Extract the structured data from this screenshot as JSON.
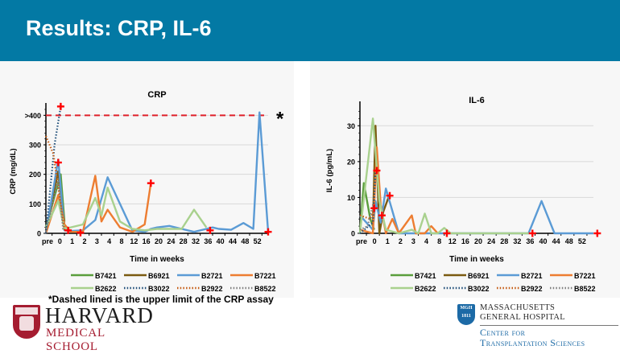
{
  "header": {
    "title": "Results: CRP, IL-6"
  },
  "footnote": "*Dashed lined is the upper limit of the CRP assay",
  "logos": {
    "harvard": {
      "name": "HARVARD",
      "sub": "MEDICAL SCHOOL"
    },
    "mgh": {
      "shield_text": "MGH",
      "shield_year": "1811",
      "line1": "MASSACHUSETTS",
      "line2": "GENERAL HOSPITAL",
      "center1": "Center for",
      "center2": "Transplantation Sciences"
    }
  },
  "colors": {
    "header_bg": "#0379a4",
    "B7421": "#5a9e3c",
    "B6921": "#7a5a10",
    "B2721": "#5b9bd5",
    "B7221": "#ed7d31",
    "B2622": "#a9d18e",
    "B3022": "#1f4e79",
    "B2922": "#c55a11",
    "B8522": "#7f7f7f",
    "marker": "#ff0000",
    "limit": "#e0202a"
  },
  "chart_data": [
    {
      "type": "line",
      "title": "CRP",
      "xlabel": "Time in weeks",
      "ylabel": "CRP (mg/dL)",
      "categories": [
        "pre",
        "0",
        "1",
        "2",
        "3",
        "4",
        "8",
        "12",
        "16",
        "20",
        "24",
        "28",
        "32",
        "36",
        "40",
        "44",
        "48",
        "52"
      ],
      "ytick_labels": [
        "0",
        "100",
        "200",
        "300",
        ">400"
      ],
      "ylim": [
        0,
        420
      ],
      "grid": true,
      "legend": "bottom",
      "reference_line": {
        "y": 400,
        "style": "dashed",
        "label": "*"
      },
      "series": [
        {
          "name": "B7421",
          "style": "solid",
          "points": [
            [
              0,
              20
            ],
            [
              1.2,
              200
            ],
            [
              1.5,
              40
            ]
          ]
        },
        {
          "name": "B6921",
          "style": "solid",
          "points": [
            [
              0,
              10
            ],
            [
              1,
              210
            ],
            [
              1.5,
              30
            ],
            [
              2,
              5
            ]
          ]
        },
        {
          "name": "B2721",
          "style": "solid",
          "points": [
            [
              0,
              0
            ],
            [
              1,
              250
            ],
            [
              1.5,
              10
            ],
            [
              2,
              8
            ],
            [
              3,
              10
            ],
            [
              4,
              45
            ],
            [
              5,
              190
            ],
            [
              6,
              100
            ],
            [
              7,
              10
            ],
            [
              8,
              5
            ],
            [
              8.5,
              15
            ],
            [
              9,
              20
            ],
            [
              10,
              25
            ],
            [
              11,
              15
            ],
            [
              12,
              5
            ],
            [
              13,
              15
            ],
            [
              13.5,
              20
            ],
            [
              14,
              15
            ],
            [
              15,
              12
            ],
            [
              16,
              35
            ],
            [
              16.8,
              15
            ],
            [
              17.3,
              410
            ],
            [
              18,
              5
            ]
          ]
        },
        {
          "name": "B7221",
          "style": "solid",
          "points": [
            [
              0,
              0
            ],
            [
              1,
              130
            ],
            [
              1.5,
              30
            ],
            [
              2,
              5
            ],
            [
              3,
              5
            ],
            [
              4,
              195
            ],
            [
              4.5,
              40
            ],
            [
              5,
              80
            ],
            [
              6,
              20
            ],
            [
              7,
              5
            ],
            [
              8,
              30
            ],
            [
              8.5,
              170
            ]
          ]
        },
        {
          "name": "B2622",
          "style": "solid",
          "points": [
            [
              0,
              20
            ],
            [
              1,
              110
            ],
            [
              1.5,
              15
            ],
            [
              3,
              30
            ],
            [
              4,
              120
            ],
            [
              4.5,
              60
            ],
            [
              5,
              155
            ],
            [
              6,
              40
            ],
            [
              7,
              15
            ],
            [
              8,
              10
            ],
            [
              9,
              15
            ],
            [
              10,
              15
            ],
            [
              11,
              15
            ],
            [
              12,
              80
            ],
            [
              13,
              20
            ]
          ]
        },
        {
          "name": "B3022",
          "style": "dotted",
          "points": [
            [
              0,
              0
            ],
            [
              0.7,
              300
            ],
            [
              1.2,
              430
            ]
          ]
        },
        {
          "name": "B2922",
          "style": "dotted",
          "points": [
            [
              0,
              330
            ],
            [
              0.6,
              270
            ],
            [
              1.2,
              100
            ],
            [
              1.5,
              10
            ]
          ]
        },
        {
          "name": "B8522",
          "style": "dotted",
          "points": [
            [
              0,
              5
            ],
            [
              1,
              180
            ],
            [
              1.4,
              10
            ]
          ]
        }
      ],
      "markers": [
        [
          1.2,
          430
        ],
        [
          1,
          240
        ],
        [
          1.8,
          10
        ],
        [
          2.8,
          2
        ],
        [
          8.5,
          170
        ],
        [
          13.3,
          10
        ],
        [
          18,
          5
        ]
      ]
    },
    {
      "type": "line",
      "title": "IL-6",
      "xlabel": "Time in weeks",
      "ylabel": "IL-6 (pg/mL)",
      "categories": [
        "pre",
        "0",
        "1",
        "2",
        "3",
        "4",
        "8",
        "12",
        "16",
        "20",
        "24",
        "28",
        "32",
        "36",
        "40",
        "44",
        "48",
        "52"
      ],
      "ytick_labels": [
        "0",
        "10",
        "20",
        "30"
      ],
      "ylim": [
        0,
        35
      ],
      "grid": true,
      "legend": "bottom",
      "series": [
        {
          "name": "B7421",
          "style": "solid",
          "points": [
            [
              0,
              0
            ],
            [
              0.3,
              14
            ],
            [
              0.8,
              4
            ],
            [
              1.1,
              1
            ]
          ]
        },
        {
          "name": "B6921",
          "style": "solid",
          "points": [
            [
              1,
              2
            ],
            [
              1.2,
              30
            ],
            [
              1.5,
              0
            ],
            [
              1.8,
              6
            ],
            [
              2.2,
              10
            ]
          ]
        },
        {
          "name": "B2721",
          "style": "solid",
          "points": [
            [
              0,
              5
            ],
            [
              1,
              1
            ],
            [
              1.2,
              9
            ],
            [
              1.6,
              3
            ],
            [
              2,
              12.5
            ],
            [
              3,
              0
            ],
            [
              4,
              0
            ],
            [
              13,
              0
            ],
            [
              14,
              9
            ],
            [
              15,
              0
            ],
            [
              18,
              0
            ]
          ]
        },
        {
          "name": "B7221",
          "style": "solid",
          "points": [
            [
              0,
              1
            ],
            [
              1,
              0
            ],
            [
              1.3,
              24
            ],
            [
              1.6,
              8
            ],
            [
              2,
              0
            ],
            [
              2.5,
              4
            ],
            [
              3,
              0
            ],
            [
              4,
              5
            ],
            [
              4.3,
              0
            ],
            [
              5,
              0
            ],
            [
              5.5,
              2
            ],
            [
              6,
              0
            ]
          ]
        },
        {
          "name": "B2622",
          "style": "solid",
          "points": [
            [
              0,
              0
            ],
            [
              1,
              32
            ],
            [
              1.5,
              9
            ],
            [
              2,
              1
            ],
            [
              3,
              0
            ],
            [
              4,
              1
            ],
            [
              4.5,
              0
            ],
            [
              5,
              5.5
            ],
            [
              5.5,
              0
            ],
            [
              6,
              0
            ],
            [
              6.5,
              1.5
            ],
            [
              7,
              0
            ],
            [
              13,
              0
            ]
          ]
        },
        {
          "name": "B3022",
          "style": "dotted",
          "points": [
            [
              0,
              0
            ],
            [
              1,
              3
            ],
            [
              1.2,
              17
            ]
          ]
        },
        {
          "name": "B2922",
          "style": "dotted",
          "points": [
            [
              0,
              5
            ],
            [
              0.8,
              4
            ],
            [
              1,
              6
            ]
          ]
        },
        {
          "name": "B8522",
          "style": "dotted",
          "points": [
            [
              0,
              1
            ],
            [
              0.6,
              2
            ],
            [
              1,
              8
            ]
          ]
        }
      ],
      "markers": [
        [
          1.1,
          7
        ],
        [
          1.3,
          17.5
        ],
        [
          1.7,
          5
        ],
        [
          2.3,
          10.5
        ],
        [
          6.7,
          0
        ],
        [
          13.3,
          0
        ],
        [
          18.3,
          0
        ]
      ]
    }
  ]
}
